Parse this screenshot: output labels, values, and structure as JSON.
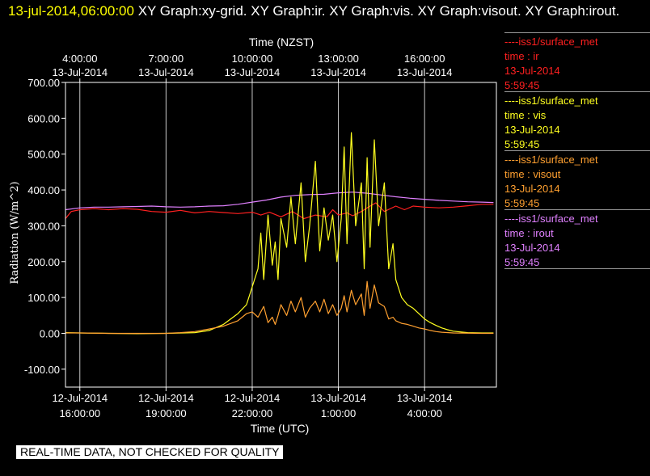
{
  "header": {
    "timestamp": "13-jul-2014,06:00:00",
    "graphs": "XY Graph:xy-grid.  XY Graph:ir.  XY Graph:vis.  XY Graph:visout.  XY Graph:irout."
  },
  "legend": [
    {
      "source": "----iss1/surface_met",
      "variable": "time : ir",
      "date": "13-Jul-2014",
      "time": "5:59:45",
      "color": "#ff2020"
    },
    {
      "source": "----iss1/surface_met",
      "variable": "time : vis",
      "date": "13-Jul-2014",
      "time": "5:59:45",
      "color": "#ffff20"
    },
    {
      "source": "----iss1/surface_met",
      "variable": "time : visout",
      "date": "13-Jul-2014",
      "time": "5:59:45",
      "color": "#ffa030"
    },
    {
      "source": "----iss1/surface_met",
      "variable": "time : irout",
      "date": "13-Jul-2014",
      "time": "5:59:45",
      "color": "#e080ff"
    }
  ],
  "footer": {
    "disclaimer": "REAL-TIME DATA, NOT CHECKED FOR QUALITY"
  },
  "chart_data": {
    "type": "line",
    "title": "",
    "xlabel_bottom": "Time (UTC)",
    "xlabel_top": "Time (NZST)",
    "ylabel": "Radiation  (W/m^2)",
    "ylim": [
      -150,
      700
    ],
    "yticks": [
      700,
      600,
      500,
      400,
      300,
      200,
      100,
      0,
      -100
    ],
    "ytick_labels": [
      "700.00",
      "600.00",
      "500.00",
      "400.00",
      "300.00",
      "200.00",
      "100.00",
      "0.00",
      "-100.00"
    ],
    "xlim": [
      15.5,
      30.5
    ],
    "x_units": "hours since 12-Jul-2014 00:00 UTC",
    "bottom_ticks": [
      {
        "x": 16,
        "line1": "12-Jul-2014",
        "line2": "16:00:00"
      },
      {
        "x": 19,
        "line1": "12-Jul-2014",
        "line2": "19:00:00"
      },
      {
        "x": 22,
        "line1": "12-Jul-2014",
        "line2": "22:00:00"
      },
      {
        "x": 25,
        "line1": "13-Jul-2014",
        "line2": "1:00:00"
      },
      {
        "x": 28,
        "line1": "13-Jul-2014",
        "line2": "4:00:00"
      }
    ],
    "top_ticks": [
      {
        "x": 16,
        "line1": "4:00:00",
        "line2": "13-Jul-2014"
      },
      {
        "x": 19,
        "line1": "7:00:00",
        "line2": "13-Jul-2014"
      },
      {
        "x": 22,
        "line1": "10:00:00",
        "line2": "13-Jul-2014"
      },
      {
        "x": 25,
        "line1": "13:00:00",
        "line2": "13-Jul-2014"
      },
      {
        "x": 28,
        "line1": "16:00:00",
        "line2": "13-Jul-2014"
      }
    ],
    "grid": true,
    "legend_position": "right",
    "series": [
      {
        "name": "time : irout",
        "color": "#e080ff",
        "points": [
          [
            15.5,
            345
          ],
          [
            16.0,
            350
          ],
          [
            16.5,
            352
          ],
          [
            17.0,
            352
          ],
          [
            17.5,
            353
          ],
          [
            18.0,
            354
          ],
          [
            18.5,
            355
          ],
          [
            19.0,
            353
          ],
          [
            19.5,
            352
          ],
          [
            20.0,
            353
          ],
          [
            20.5,
            355
          ],
          [
            21.0,
            356
          ],
          [
            21.5,
            360
          ],
          [
            22.0,
            366
          ],
          [
            22.5,
            372
          ],
          [
            23.0,
            380
          ],
          [
            23.5,
            385
          ],
          [
            24.0,
            387
          ],
          [
            24.5,
            388
          ],
          [
            25.0,
            392
          ],
          [
            25.5,
            394
          ],
          [
            26.0,
            391
          ],
          [
            26.5,
            386
          ],
          [
            27.0,
            381
          ],
          [
            27.5,
            377
          ],
          [
            28.0,
            374
          ],
          [
            28.5,
            371
          ],
          [
            29.0,
            369
          ],
          [
            29.5,
            367
          ],
          [
            30.0,
            366
          ],
          [
            30.4,
            365
          ]
        ]
      },
      {
        "name": "time : ir",
        "color": "#ff2020",
        "points": [
          [
            15.5,
            320
          ],
          [
            15.7,
            340
          ],
          [
            16.0,
            345
          ],
          [
            16.5,
            348
          ],
          [
            17.0,
            345
          ],
          [
            17.5,
            348
          ],
          [
            18.0,
            346
          ],
          [
            18.5,
            340
          ],
          [
            19.0,
            338
          ],
          [
            19.5,
            343
          ],
          [
            20.0,
            336
          ],
          [
            20.5,
            340
          ],
          [
            21.0,
            337
          ],
          [
            21.5,
            334
          ],
          [
            22.0,
            338
          ],
          [
            22.3,
            330
          ],
          [
            22.6,
            338
          ],
          [
            23.0,
            325
          ],
          [
            23.4,
            340
          ],
          [
            23.8,
            320
          ],
          [
            24.2,
            330
          ],
          [
            24.6,
            325
          ],
          [
            24.8,
            345
          ],
          [
            25.0,
            330
          ],
          [
            25.3,
            336
          ],
          [
            25.5,
            328
          ],
          [
            25.8,
            340
          ],
          [
            26.0,
            350
          ],
          [
            26.3,
            364
          ],
          [
            26.6,
            340
          ],
          [
            27.0,
            355
          ],
          [
            27.3,
            345
          ],
          [
            27.6,
            355
          ],
          [
            28.0,
            352
          ],
          [
            28.5,
            350
          ],
          [
            29.0,
            352
          ],
          [
            29.5,
            356
          ],
          [
            30.0,
            360
          ],
          [
            30.4,
            360
          ]
        ]
      },
      {
        "name": "time : vis",
        "color": "#ffff20",
        "points": [
          [
            15.5,
            2
          ],
          [
            16.0,
            1
          ],
          [
            17.0,
            0
          ],
          [
            18.0,
            -1
          ],
          [
            19.0,
            0
          ],
          [
            20.0,
            2
          ],
          [
            20.5,
            8
          ],
          [
            21.0,
            25
          ],
          [
            21.5,
            55
          ],
          [
            21.8,
            80
          ],
          [
            22.0,
            130
          ],
          [
            22.2,
            180
          ],
          [
            22.3,
            280
          ],
          [
            22.4,
            150
          ],
          [
            22.55,
            330
          ],
          [
            22.7,
            190
          ],
          [
            22.8,
            255
          ],
          [
            22.9,
            150
          ],
          [
            23.0,
            320
          ],
          [
            23.2,
            240
          ],
          [
            23.35,
            380
          ],
          [
            23.5,
            250
          ],
          [
            23.7,
            420
          ],
          [
            23.85,
            200
          ],
          [
            24.0,
            300
          ],
          [
            24.2,
            480
          ],
          [
            24.35,
            230
          ],
          [
            24.5,
            350
          ],
          [
            24.65,
            260
          ],
          [
            24.8,
            330
          ],
          [
            24.95,
            200
          ],
          [
            25.1,
            320
          ],
          [
            25.2,
            520
          ],
          [
            25.3,
            250
          ],
          [
            25.45,
            560
          ],
          [
            25.6,
            300
          ],
          [
            25.8,
            420
          ],
          [
            25.9,
            180
          ],
          [
            26.0,
            490
          ],
          [
            26.1,
            240
          ],
          [
            26.25,
            540
          ],
          [
            26.4,
            300
          ],
          [
            26.6,
            420
          ],
          [
            26.75,
            180
          ],
          [
            26.9,
            250
          ],
          [
            27.0,
            150
          ],
          [
            27.2,
            100
          ],
          [
            27.4,
            80
          ],
          [
            27.6,
            70
          ],
          [
            27.8,
            55
          ],
          [
            28.0,
            40
          ],
          [
            28.2,
            30
          ],
          [
            28.4,
            22
          ],
          [
            28.6,
            15
          ],
          [
            28.8,
            10
          ],
          [
            29.0,
            6
          ],
          [
            29.5,
            2
          ],
          [
            30.0,
            1
          ],
          [
            30.4,
            1
          ]
        ]
      },
      {
        "name": "time : visout",
        "color": "#ffa030",
        "points": [
          [
            15.5,
            1
          ],
          [
            16.0,
            1
          ],
          [
            17.0,
            0
          ],
          [
            18.0,
            0
          ],
          [
            19.0,
            0
          ],
          [
            19.5,
            2
          ],
          [
            20.0,
            5
          ],
          [
            20.5,
            12
          ],
          [
            21.0,
            20
          ],
          [
            21.5,
            35
          ],
          [
            21.8,
            55
          ],
          [
            22.0,
            60
          ],
          [
            22.2,
            45
          ],
          [
            22.4,
            75
          ],
          [
            22.55,
            30
          ],
          [
            22.7,
            45
          ],
          [
            22.8,
            25
          ],
          [
            22.9,
            50
          ],
          [
            23.0,
            80
          ],
          [
            23.2,
            50
          ],
          [
            23.35,
            90
          ],
          [
            23.5,
            60
          ],
          [
            23.7,
            100
          ],
          [
            23.85,
            45
          ],
          [
            24.0,
            70
          ],
          [
            24.2,
            90
          ],
          [
            24.35,
            60
          ],
          [
            24.5,
            95
          ],
          [
            24.65,
            55
          ],
          [
            24.8,
            80
          ],
          [
            24.95,
            50
          ],
          [
            25.1,
            70
          ],
          [
            25.2,
            105
          ],
          [
            25.3,
            60
          ],
          [
            25.45,
            120
          ],
          [
            25.6,
            80
          ],
          [
            25.8,
            110
          ],
          [
            25.9,
            50
          ],
          [
            26.0,
            145
          ],
          [
            26.1,
            70
          ],
          [
            26.25,
            135
          ],
          [
            26.4,
            85
          ],
          [
            26.6,
            75
          ],
          [
            26.75,
            40
          ],
          [
            26.9,
            45
          ],
          [
            27.0,
            35
          ],
          [
            27.2,
            28
          ],
          [
            27.4,
            25
          ],
          [
            27.6,
            20
          ],
          [
            27.8,
            15
          ],
          [
            28.0,
            12
          ],
          [
            28.2,
            8
          ],
          [
            28.4,
            5
          ],
          [
            28.6,
            3
          ],
          [
            29.0,
            1
          ],
          [
            30.0,
            0
          ],
          [
            30.4,
            0
          ]
        ]
      }
    ]
  }
}
